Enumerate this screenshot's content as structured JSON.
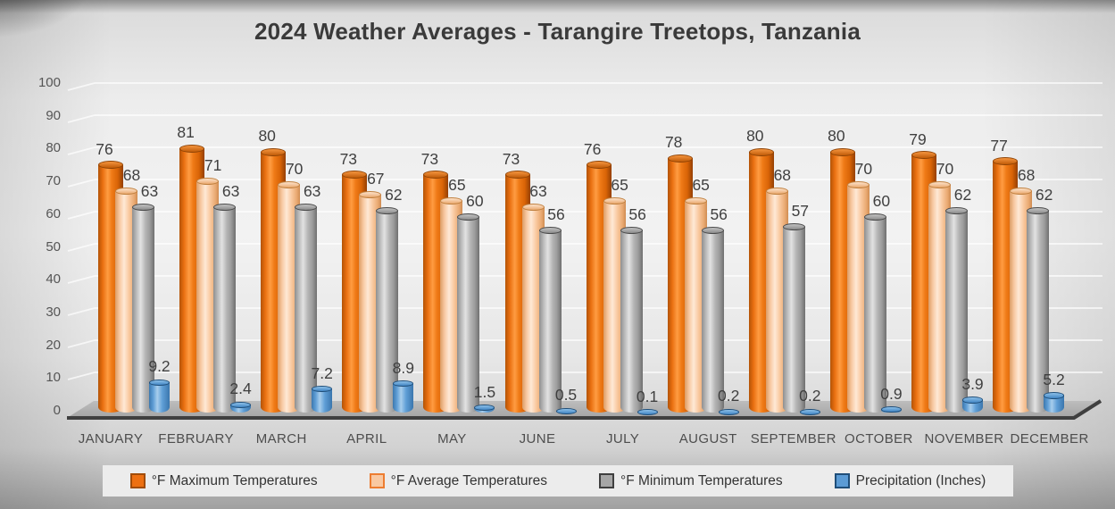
{
  "chart_data": {
    "type": "bar",
    "variant": "3d-cylinder",
    "title": "2024 Weather Averages - Tarangire Treetops, Tanzania",
    "categories": [
      "JANUARY",
      "FEBRUARY",
      "MARCH",
      "APRIL",
      "MAY",
      "JUNE",
      "JULY",
      "AUGUST",
      "SEPTEMBER",
      "OCTOBER",
      "NOVEMBER",
      "DECEMBER"
    ],
    "series": [
      {
        "name": "°F Maximum Temperatures",
        "color": "#E8700E",
        "values": [
          76,
          81,
          80,
          73,
          73,
          73,
          76,
          78,
          80,
          80,
          79,
          77
        ]
      },
      {
        "name": "°F Average Temperatures",
        "color": "#F9C9A2",
        "values": [
          68,
          71,
          70,
          67,
          65,
          63,
          65,
          65,
          68,
          70,
          70,
          68
        ]
      },
      {
        "name": "°F Minimum Temperatures",
        "color": "#A9A9A9",
        "values": [
          63,
          63,
          63,
          62,
          60,
          56,
          56,
          56,
          57,
          60,
          62,
          62
        ]
      },
      {
        "name": "Precipitation (Inches)",
        "color": "#5B9BD5",
        "values": [
          9.2,
          2.4,
          7.2,
          8.9,
          1.5,
          0.5,
          0.1,
          0.2,
          0.2,
          0.9,
          3.9,
          5.2
        ]
      }
    ],
    "ylim": [
      0,
      100
    ],
    "yticks": [
      0,
      10,
      20,
      30,
      40,
      50,
      60,
      70,
      80,
      90,
      100
    ],
    "xlabel": "",
    "ylabel": "",
    "grid": true,
    "data_labels": true,
    "legend_position": "bottom"
  }
}
